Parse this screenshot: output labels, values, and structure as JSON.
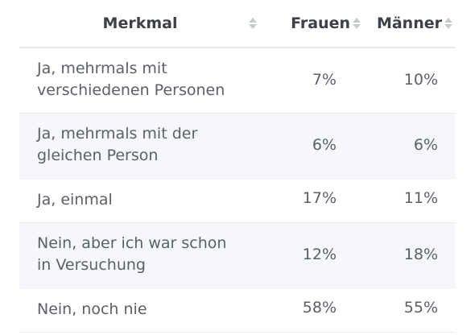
{
  "table": {
    "headers": {
      "merkmal": "Merkmal",
      "frauen": "Frauen",
      "maenner": "Männer"
    },
    "sort_icon": "sort-updown-icon",
    "rows": [
      {
        "label_line1": "Ja, mehrmals mit",
        "label_line2": "verschiedenen Personen",
        "frauen": "7%",
        "maenner": "10%"
      },
      {
        "label_line1": "Ja, mehrmals mit der",
        "label_line2": "gleichen Person",
        "frauen": "6%",
        "maenner": "6%"
      },
      {
        "label_line1": "Ja, einmal",
        "label_line2": "",
        "frauen": "17%",
        "maenner": "11%"
      },
      {
        "label_line1": "Nein, aber ich war schon",
        "label_line2": "in Versuchung",
        "frauen": "12%",
        "maenner": "18%"
      },
      {
        "label_line1": "Nein, noch nie",
        "label_line2": "",
        "frauen": "58%",
        "maenner": "55%"
      }
    ],
    "colors": {
      "header_text": "#3d4049",
      "body_text": "#5b5f68",
      "alt_row_bg": "#f5f7fa",
      "sort_icon": "#c5c9d1"
    }
  }
}
